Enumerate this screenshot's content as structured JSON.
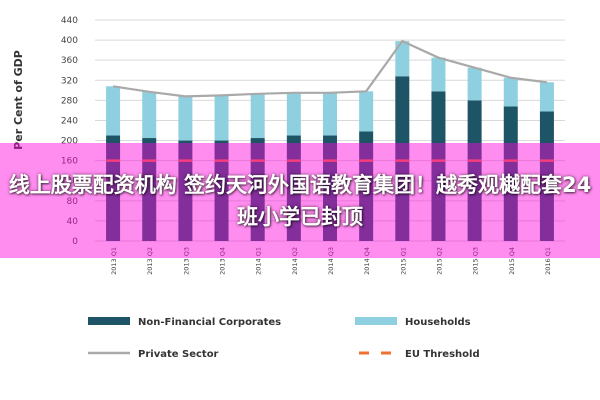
{
  "overlay_caption": "线上股票配资机构 签约天河外国语教育集团！越秀观樾配套24班小学已封顶",
  "chart_data": {
    "type": "bar",
    "title": "",
    "xlabel": "",
    "ylabel": "Per Cent of GDP",
    "ylim": [
      0,
      440
    ],
    "yticks": [
      0,
      40,
      80,
      120,
      160,
      200,
      240,
      280,
      320,
      360,
      400,
      440
    ],
    "categories": [
      "2013 Q1",
      "2013 Q2",
      "2013 Q3",
      "2013 Q4",
      "2014 Q1",
      "2014 Q2",
      "2014 Q3",
      "2014 Q4",
      "2015 Q1",
      "2015 Q2",
      "2015 Q3",
      "2015 Q4",
      "2016 Q1"
    ],
    "stacked": true,
    "series": [
      {
        "name": "Non-Financial Corporates",
        "kind": "bar",
        "color": "#1e5566",
        "values": [
          210,
          205,
          200,
          200,
          205,
          210,
          210,
          218,
          328,
          298,
          280,
          268,
          258
        ]
      },
      {
        "name": "Households",
        "kind": "bar",
        "color": "#8fd0e0",
        "values": [
          98,
          92,
          88,
          90,
          88,
          85,
          85,
          80,
          70,
          67,
          65,
          57,
          58
        ]
      },
      {
        "name": "Private Sector",
        "kind": "line",
        "color": "#a9a9a9",
        "values": [
          308,
          297,
          288,
          290,
          293,
          295,
          295,
          298,
          398,
          365,
          345,
          325,
          316
        ]
      },
      {
        "name": "EU Threshold",
        "kind": "dashed-line",
        "color": "#f07030",
        "values": [
          160,
          160,
          160,
          160,
          160,
          160,
          160,
          160,
          160,
          160,
          160,
          160,
          160
        ]
      }
    ],
    "legend": {
      "placement": "bottom",
      "items": [
        {
          "label": "Non-Financial Corporates",
          "symbol": "box",
          "color": "#1e5566"
        },
        {
          "label": "Households",
          "symbol": "box",
          "color": "#8fd0e0"
        },
        {
          "label": "Private Sector",
          "symbol": "line",
          "color": "#a9a9a9"
        },
        {
          "label": "EU Threshold",
          "symbol": "dash",
          "color": "#f07030"
        }
      ]
    },
    "grid": true
  }
}
